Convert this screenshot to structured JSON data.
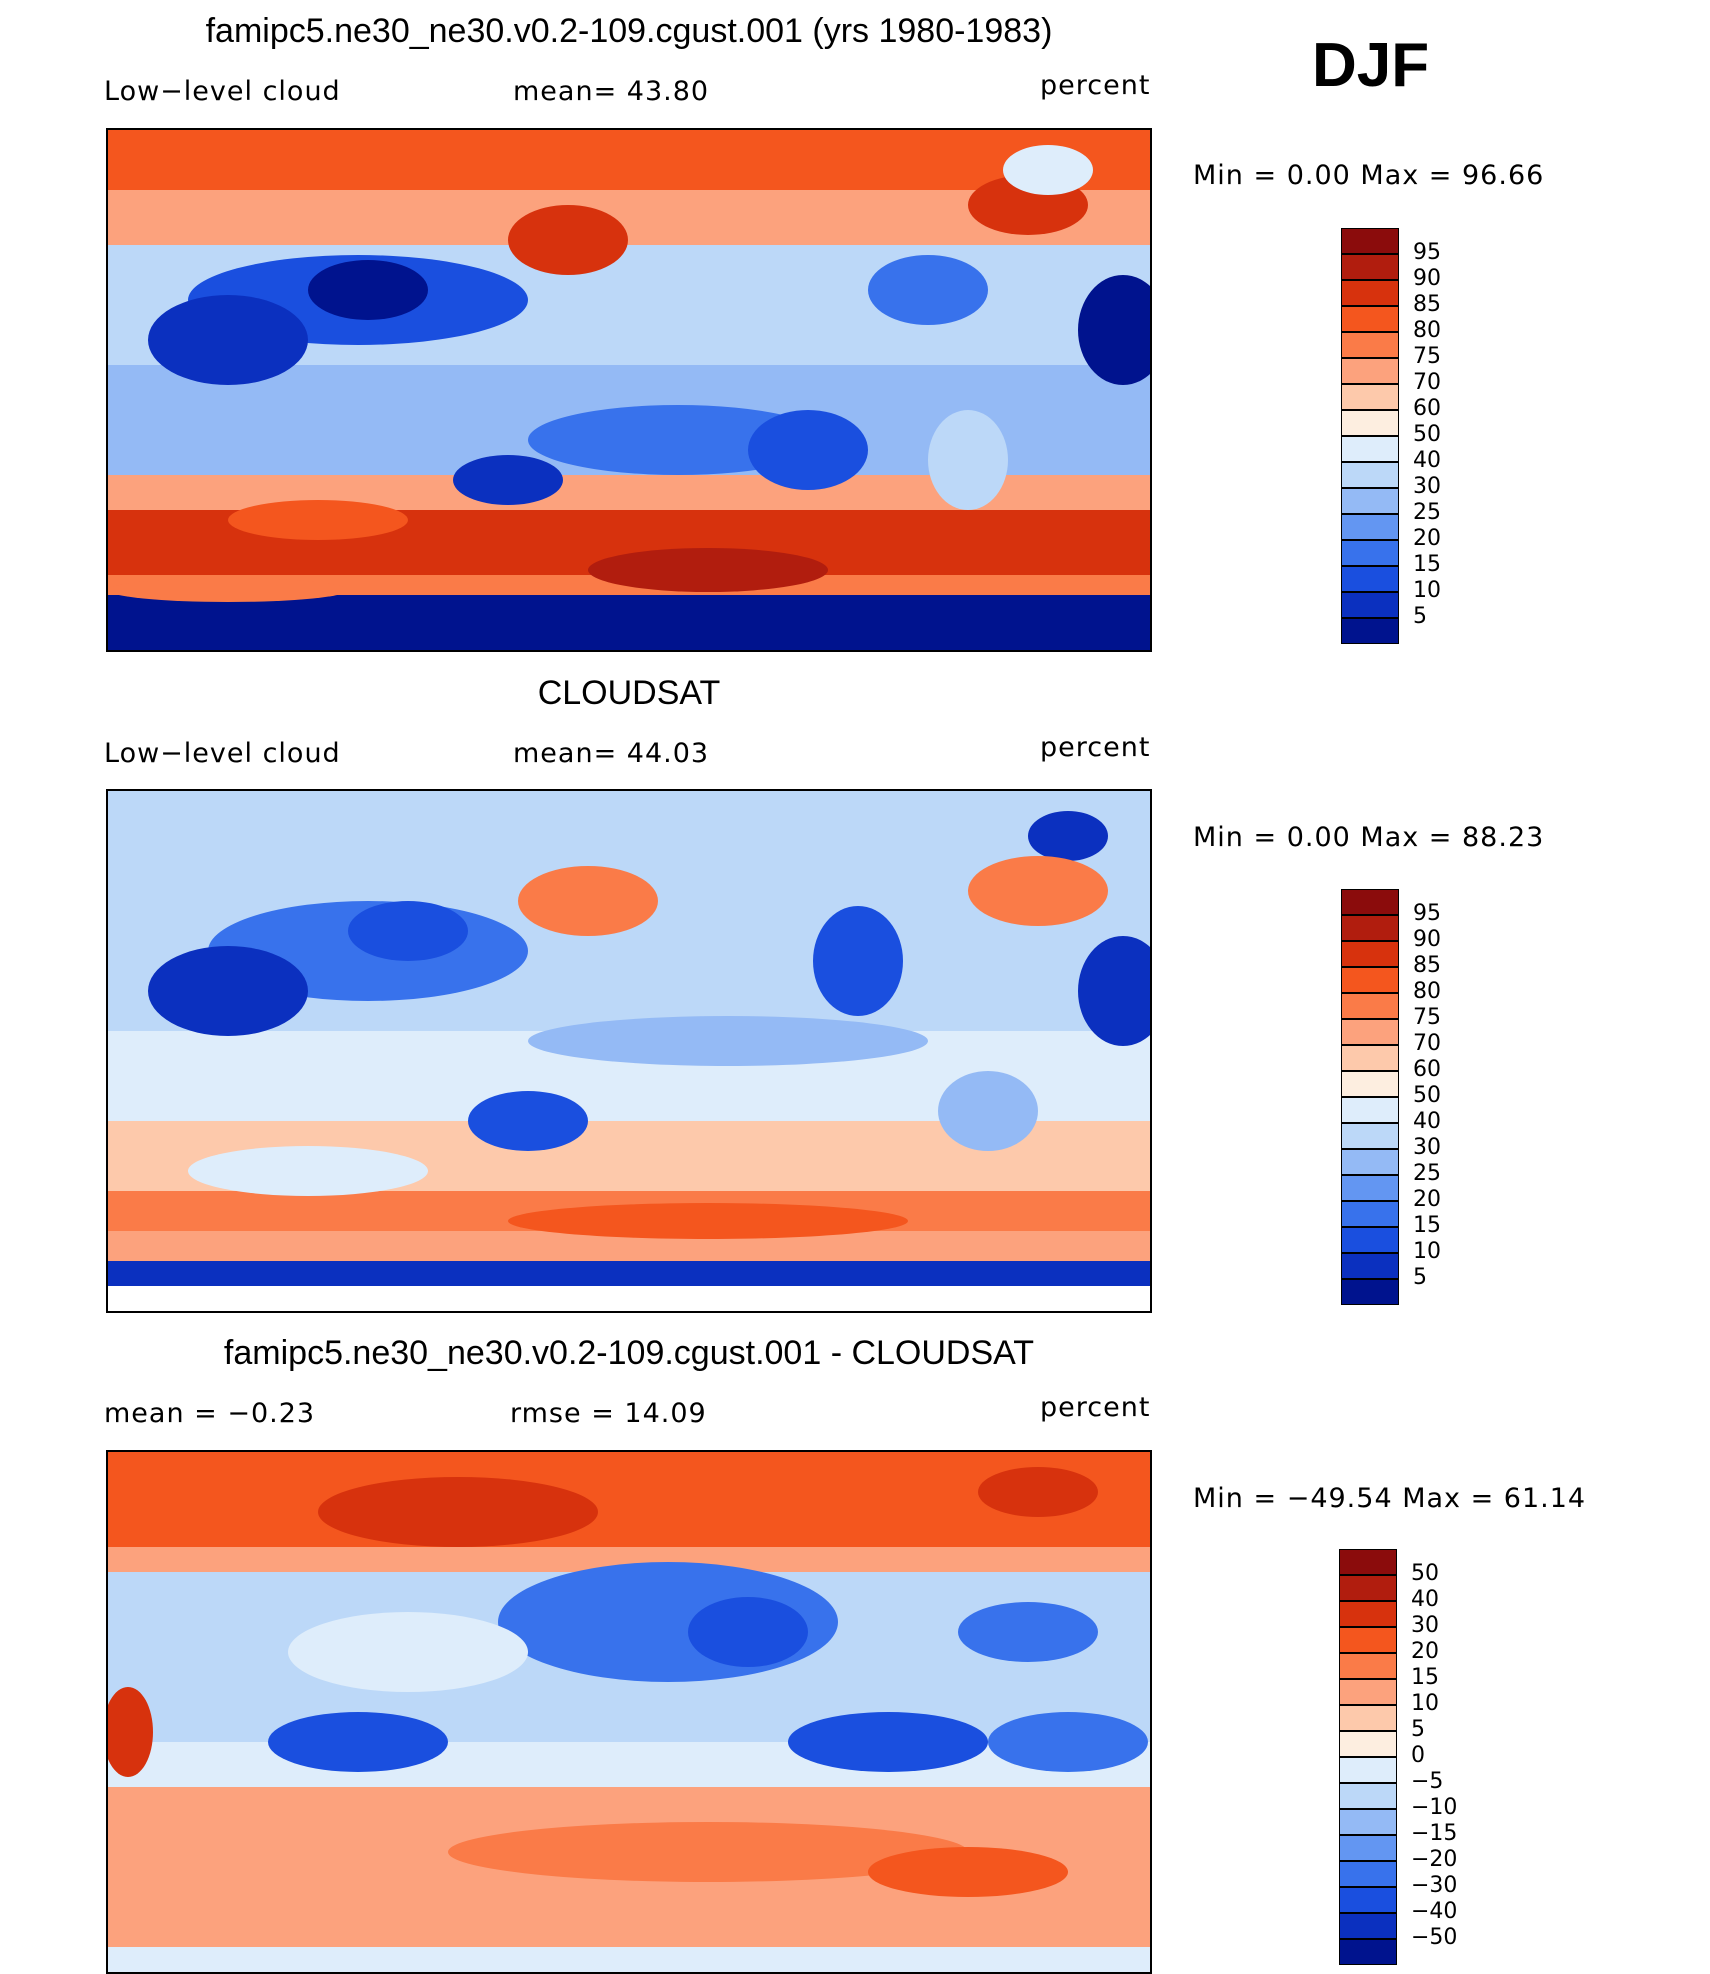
{
  "season": "DJF",
  "panels": [
    {
      "title": "famipc5.ne30_ne30.v0.2-109.cgust.001 (yrs 1980-1983)",
      "left_label": "Low−level cloud",
      "center_label": "mean=   43.80",
      "units": "percent",
      "minmax": "Min  =     0.00  Max  =    96.66",
      "colorbar": {
        "colors": [
          "#8b0c0c",
          "#b11d0e",
          "#d7320d",
          "#f4561e",
          "#fa7b48",
          "#fca27d",
          "#fdc9ab",
          "#fdeee0",
          "#deedfb",
          "#bcd8f8",
          "#94baf5",
          "#6396f2",
          "#3872ec",
          "#1a4fdf",
          "#0b30bf",
          "#00138e"
        ],
        "labels": [
          "95",
          "90",
          "85",
          "80",
          "75",
          "70",
          "60",
          "50",
          "40",
          "30",
          "25",
          "20",
          "15",
          "10",
          "5"
        ]
      }
    },
    {
      "title": "CLOUDSAT",
      "left_label": "Low−level cloud",
      "center_label": "mean=   44.03",
      "units": "percent",
      "minmax": "Min  =     0.00  Max  =    88.23",
      "colorbar": {
        "colors": [
          "#8b0c0c",
          "#b11d0e",
          "#d7320d",
          "#f4561e",
          "#fa7b48",
          "#fca27d",
          "#fdc9ab",
          "#fdeee0",
          "#deedfb",
          "#bcd8f8",
          "#94baf5",
          "#6396f2",
          "#3872ec",
          "#1a4fdf",
          "#0b30bf",
          "#00138e"
        ],
        "labels": [
          "95",
          "90",
          "85",
          "80",
          "75",
          "70",
          "60",
          "50",
          "40",
          "30",
          "25",
          "20",
          "15",
          "10",
          "5"
        ]
      }
    },
    {
      "title": "famipc5.ne30_ne30.v0.2-109.cgust.001 - CLOUDSAT",
      "left_label": "mean  =    −0.23",
      "center_label": "rmse  =    14.09",
      "units": "percent",
      "minmax": "Min  = −49.54  Max  =    61.14",
      "colorbar": {
        "colors": [
          "#8b0c0c",
          "#b11d0e",
          "#d7320d",
          "#f4561e",
          "#fa7b48",
          "#fca27d",
          "#fdc9ab",
          "#fdeee0",
          "#deedfb",
          "#bcd8f8",
          "#94baf5",
          "#6396f2",
          "#3872ec",
          "#1a4fdf",
          "#0b30bf",
          "#00138e"
        ],
        "labels": [
          "50",
          "40",
          "30",
          "20",
          "15",
          "10",
          "5",
          "0",
          "−5",
          "−10",
          "−15",
          "−20",
          "−30",
          "−40",
          "−50"
        ]
      }
    }
  ]
}
